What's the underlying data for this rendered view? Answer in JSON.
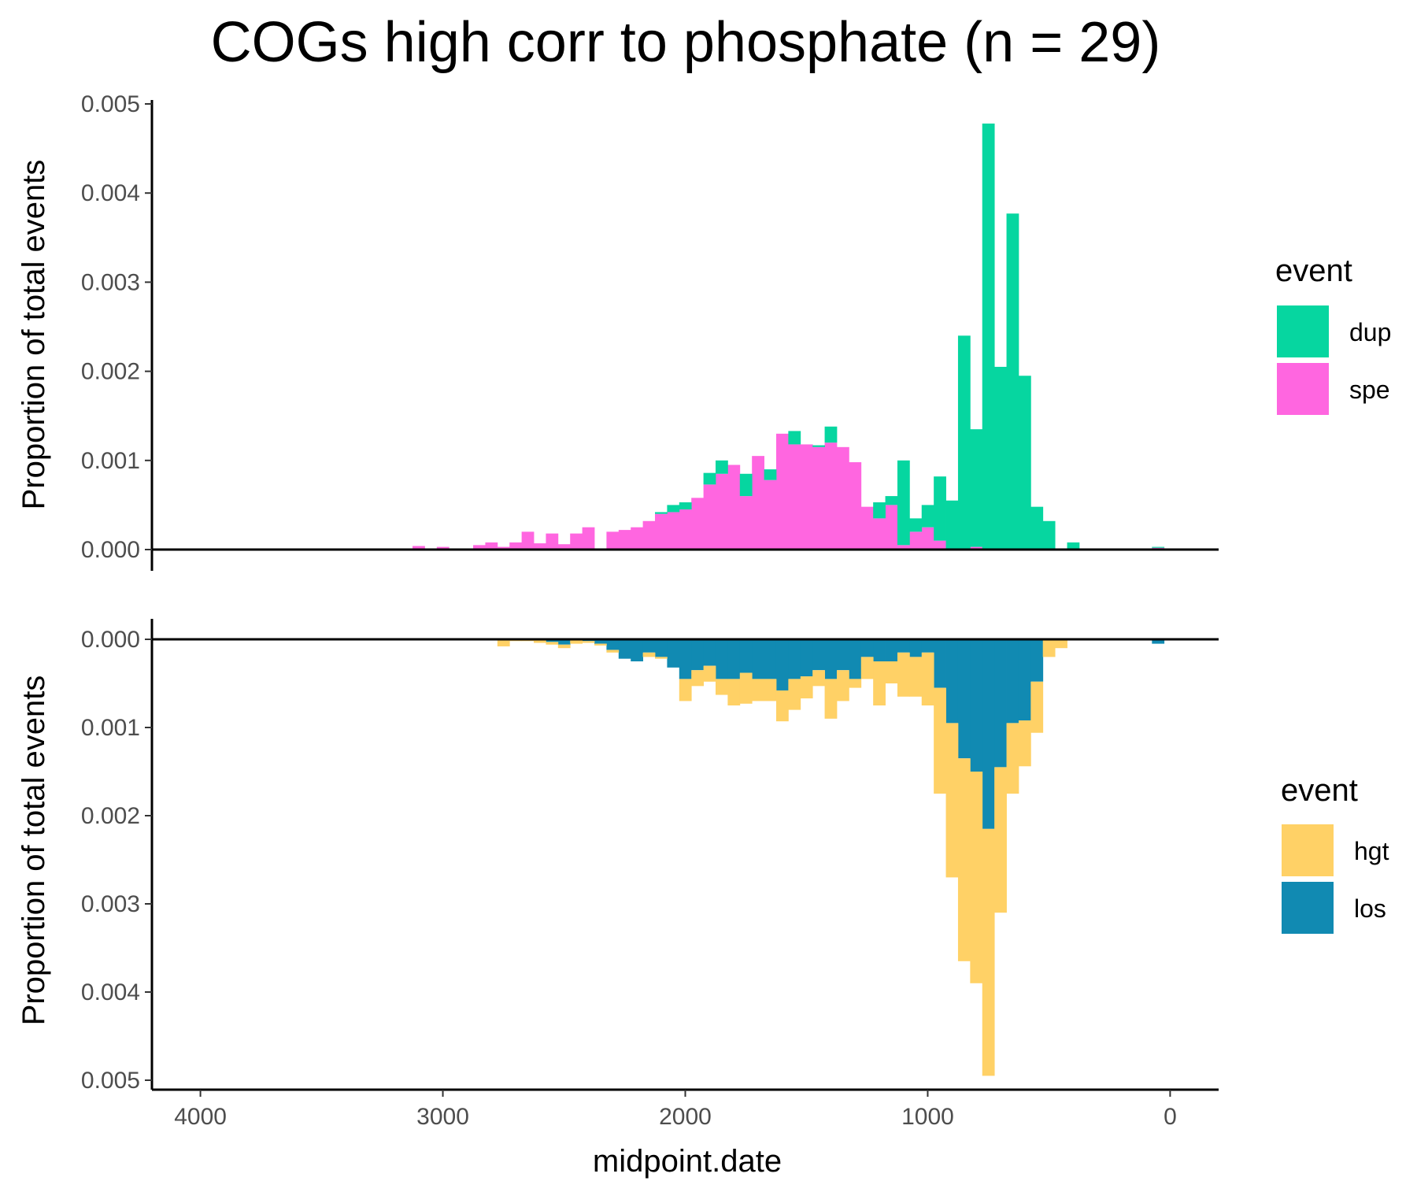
{
  "chart_data": {
    "type": "bar",
    "title": "COGs high corr to phosphate (n = 29)",
    "xlabel": "midpoint.date",
    "x_reversed": true,
    "xlim": [
      4200,
      -200
    ],
    "x_ticks": [
      4000,
      3000,
      2000,
      1000,
      0
    ],
    "x_tick_labels": [
      "4000",
      "3000",
      "2000",
      "1000",
      "0"
    ],
    "bin_width": 50,
    "bin_starts": [
      3075,
      3025,
      2975,
      2925,
      2875,
      2825,
      2775,
      2725,
      2675,
      2625,
      2575,
      2525,
      2475,
      2425,
      2375,
      2325,
      2275,
      2225,
      2175,
      2125,
      2075,
      2025,
      1975,
      1925,
      1875,
      1825,
      1775,
      1725,
      1675,
      1625,
      1575,
      1525,
      1475,
      1425,
      1375,
      1325,
      1275,
      1225,
      1175,
      1125,
      1075,
      1025,
      975,
      925,
      875,
      825,
      775,
      725,
      675,
      625,
      575,
      525,
      475,
      425,
      375,
      325,
      275,
      225,
      175,
      125,
      75,
      25
    ],
    "panels": [
      {
        "ylabel": "Proportion of total events",
        "direction": "up",
        "ylim": [
          0,
          0.005
        ],
        "y_ticks": [
          0,
          0.001,
          0.002,
          0.003,
          0.004,
          0.005
        ],
        "y_tick_labels": [
          "0.000",
          "0.001",
          "0.002",
          "0.003",
          "0.004",
          "0.005"
        ],
        "legend_title": "event",
        "series": [
          {
            "name": "spe",
            "color": "#FF66E0",
            "values": [
              4e-05,
              0,
              3e-05,
              0,
              0,
              5e-05,
              8e-05,
              3e-05,
              8e-05,
              0.0002,
              7e-05,
              0.00018,
              6e-05,
              0.00018,
              0.00025,
              0,
              0.0002,
              0.00022,
              0.00025,
              0.00032,
              0.0004,
              0.00042,
              0.00045,
              0.00058,
              0.00073,
              0.00085,
              0.00095,
              0.0006,
              0.00105,
              0.00078,
              0.0013,
              0.00118,
              0.00118,
              0.00115,
              0.0012,
              0.00115,
              0.00098,
              0.00048,
              0.00035,
              0.0005,
              5e-05,
              0.0002,
              0.00025,
              0.0001,
              0.0,
              0.0,
              3e-05,
              0.0,
              0,
              0,
              0,
              0,
              0,
              0,
              0,
              0,
              0,
              0,
              0,
              0,
              0,
              2e-05
            ]
          },
          {
            "name": "dup",
            "color": "#06D6A0",
            "values": [
              0,
              0,
              0,
              0,
              0,
              0,
              0,
              0,
              0,
              0,
              0,
              0,
              0,
              0,
              0,
              0,
              0,
              0,
              0,
              0,
              2e-05,
              8e-05,
              8e-05,
              0,
              0.00013,
              0.00015,
              0,
              0.00025,
              0,
              0.00012,
              0,
              0.00015,
              0,
              2e-05,
              0.00018,
              0,
              0,
              0,
              0.00018,
              0.0001,
              0.00095,
              0.00015,
              0.00025,
              0.00072,
              0.00055,
              0.0024,
              0.00132,
              0.00478,
              0.00205,
              0.00377,
              0.00195,
              0.00048,
              0.00032,
              0,
              8e-05,
              0,
              0,
              0,
              0,
              0,
              0,
              1e-05
            ]
          }
        ]
      },
      {
        "ylabel": "Proportion of total events",
        "direction": "down",
        "ylim": [
          0,
          0.005
        ],
        "y_ticks": [
          0,
          0.001,
          0.002,
          0.003,
          0.004,
          0.005
        ],
        "y_tick_labels": [
          "0.000",
          "0.001",
          "0.002",
          "0.003",
          "0.004",
          "0.005"
        ],
        "legend_title": "event",
        "series": [
          {
            "name": "los",
            "color": "#118AB2",
            "values": [
              0,
              0,
              0,
              0,
              0,
              0,
              0,
              0,
              0,
              0,
              0,
              3e-05,
              6e-05,
              0,
              2e-05,
              5e-05,
              0.00012,
              0.00022,
              0.00025,
              0.00015,
              0.0002,
              0.00032,
              0.00045,
              0.00035,
              0.0003,
              0.00045,
              0.00045,
              0.00038,
              0.00045,
              0.00045,
              0.00058,
              0.00045,
              0.00042,
              0.00035,
              0.00045,
              0.00035,
              0.00045,
              0.0002,
              0.00025,
              0.00025,
              0.00015,
              0.0002,
              0.00015,
              0.00055,
              0.00095,
              0.00135,
              0.0015,
              0.00215,
              0.00145,
              0.00095,
              0.00092,
              0.00048,
              0,
              0,
              0,
              0,
              0,
              0,
              0,
              0,
              0,
              5e-05
            ]
          },
          {
            "name": "hgt",
            "color": "#FFD166",
            "values": [
              0,
              0,
              0,
              0,
              0,
              0,
              0,
              8e-05,
              2e-05,
              2e-05,
              4e-05,
              3e-05,
              4e-05,
              5e-05,
              2e-05,
              2e-05,
              3e-05,
              0,
              0,
              5e-05,
              2e-05,
              0.0,
              0.00025,
              0.00018,
              0.00018,
              0.00018,
              0.0003,
              0.00035,
              0.00025,
              0.00025,
              0.00035,
              0.00035,
              0.00025,
              0.00018,
              0.00045,
              0.00035,
              0.0001,
              0.00025,
              0.0005,
              0.00025,
              0.0005,
              0.00045,
              0.0006,
              0.0012,
              0.00175,
              0.0023,
              0.0024,
              0.0028,
              0.00165,
              0.0008,
              0.00052,
              0.00058,
              0.0002,
              0.0001,
              0,
              0,
              0,
              0,
              0,
              0,
              0,
              0
            ]
          }
        ]
      }
    ]
  }
}
